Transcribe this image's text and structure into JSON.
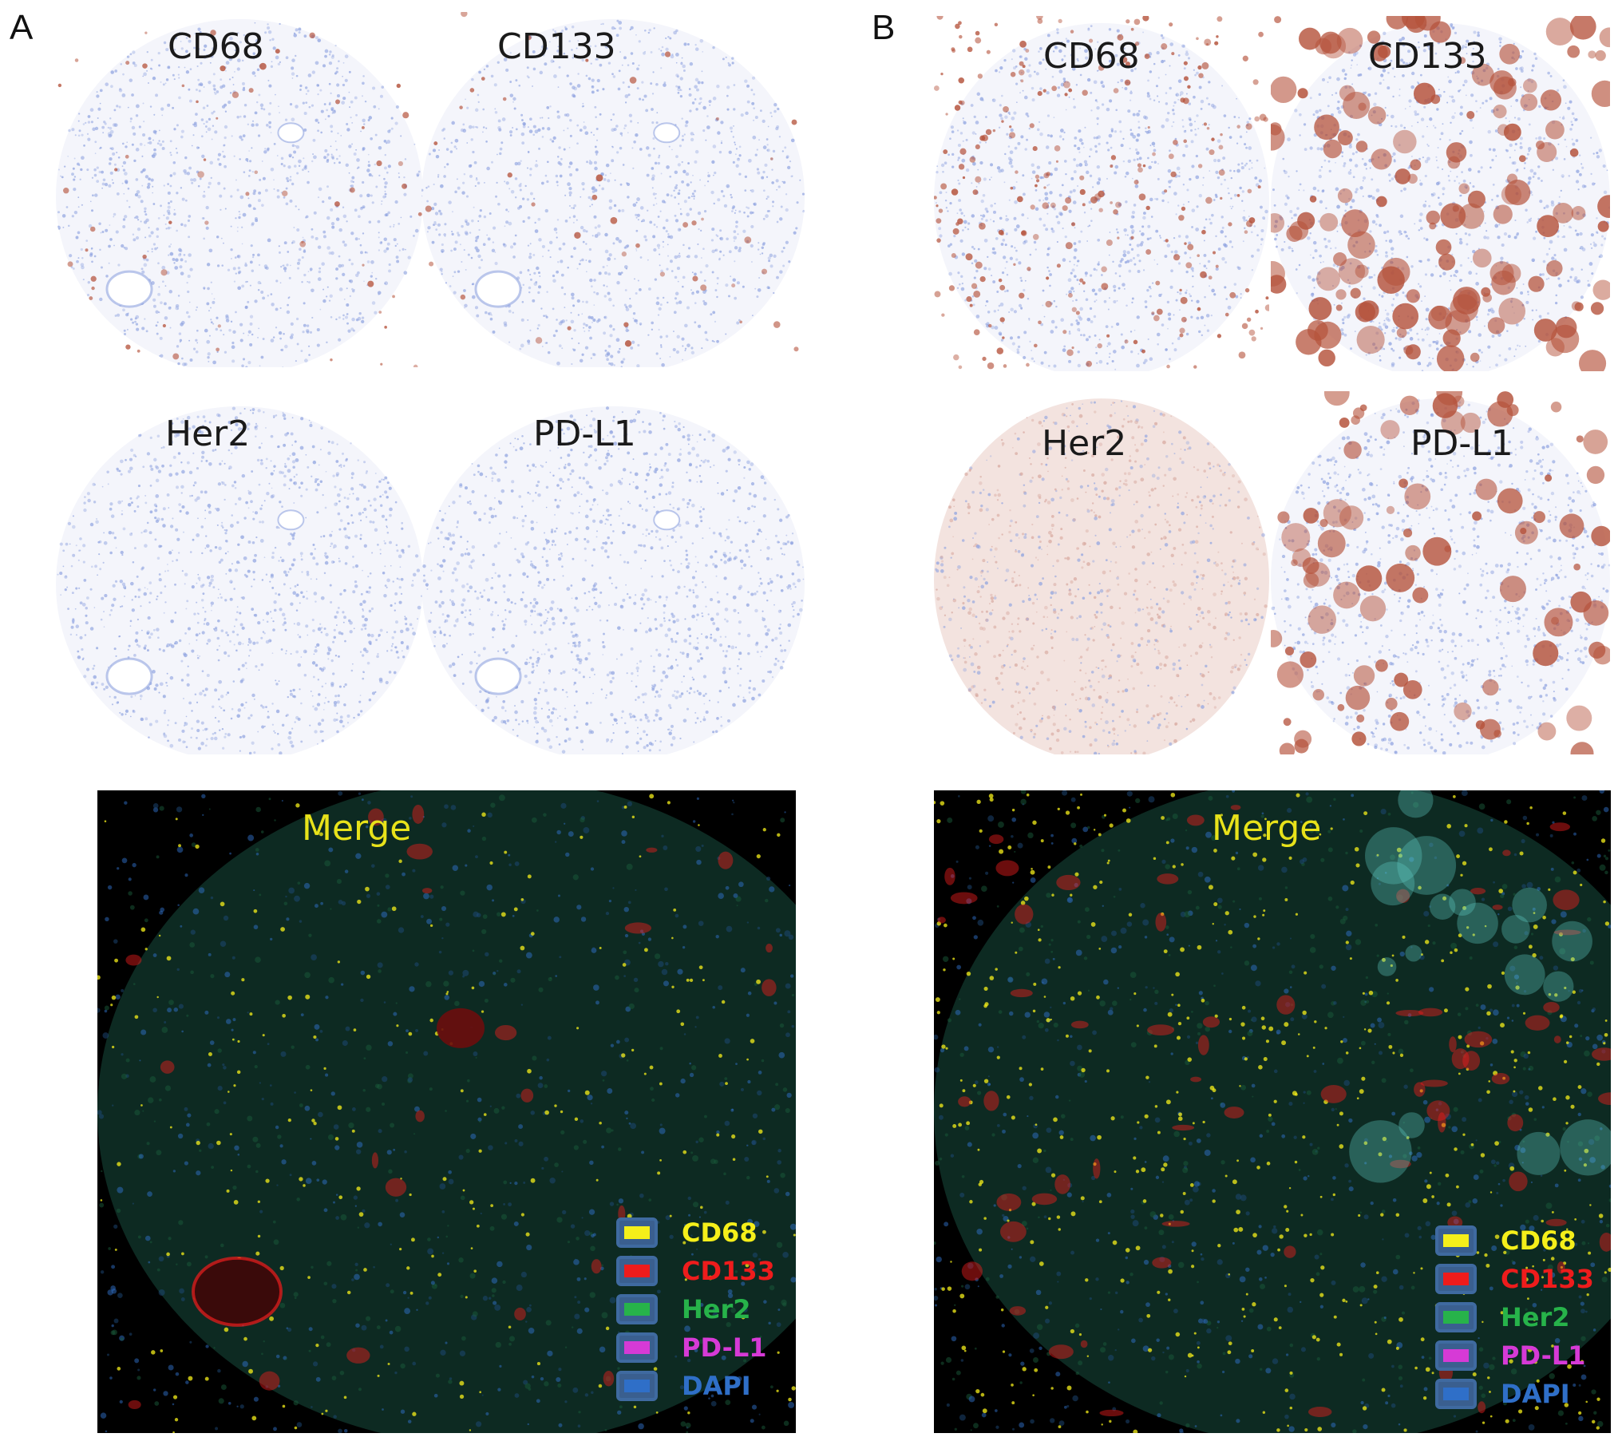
{
  "panels": [
    {
      "letter": "A",
      "ihc_tiles": [
        {
          "label": "CD68"
        },
        {
          "label": "CD133"
        },
        {
          "label": "Her2"
        },
        {
          "label": "PD-L1"
        }
      ],
      "merge": {
        "title": "Merge"
      }
    },
    {
      "letter": "B",
      "ihc_tiles": [
        {
          "label": "CD68"
        },
        {
          "label": "CD133"
        },
        {
          "label": "Her2"
        },
        {
          "label": "PD-L1"
        }
      ],
      "merge": {
        "title": "Merge"
      }
    }
  ],
  "legend": [
    {
      "label": "CD68",
      "color": "#f5ef1a"
    },
    {
      "label": "CD133",
      "color": "#ee1c1c"
    },
    {
      "label": "Her2",
      "color": "#27b34a"
    },
    {
      "label": "PD-L1",
      "color": "#d63ad6"
    },
    {
      "label": "DAPI",
      "color": "#2f6fc8"
    }
  ],
  "colors": {
    "hematoxylin_blue": "#8fa3e0",
    "dab_brown": "#b5533c",
    "merge_background": "#000000",
    "merge_title": "#e8e21a"
  }
}
